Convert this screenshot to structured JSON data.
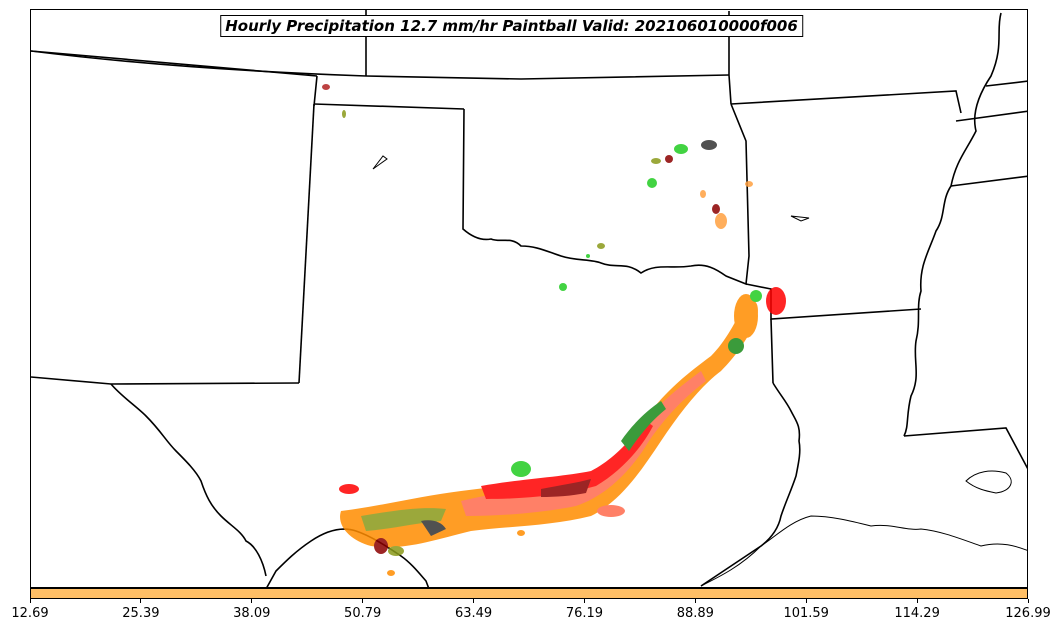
{
  "title": "Hourly Precipitation 12.7 mm/hr Paintball Valid: 202106010000f006",
  "colors": {
    "border_lines": "#000000",
    "colorbar_fill": "#ffbf66",
    "paintball_members": [
      "#ff8c00",
      "#ff6a4d",
      "#e8a040",
      "#8a9a1a",
      "#1a8a1a",
      "#22cc22",
      "#ff0000",
      "#8b0000",
      "#333333",
      "#b22222",
      "#ffa040"
    ]
  },
  "colorbar": {
    "ticks": [
      "12.69",
      "25.39",
      "38.09",
      "50.79",
      "63.49",
      "76.19",
      "88.89",
      "101.59",
      "114.29",
      "126.99"
    ]
  }
}
